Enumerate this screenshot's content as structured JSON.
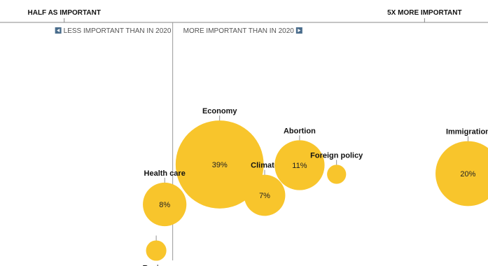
{
  "chart_data": {
    "type": "scatter",
    "x_axis_ticks": [
      {
        "value": 0.5,
        "label": "HALF AS IMPORTANT"
      },
      {
        "value": 5,
        "label": "5X MORE IMPORTANT"
      }
    ],
    "x_reference": 1,
    "x_scale": "log",
    "xlim": [
      0.35,
      7.5
    ],
    "direction_labels": {
      "left": "LESS IMPORTANT THAN IN 2020",
      "right": "MORE IMPORTANT THAN IN 2020"
    },
    "points": [
      {
        "label": "Economy",
        "x": 1.35,
        "share": 39,
        "value_label": "39%"
      },
      {
        "label": "Health care",
        "x": 0.95,
        "share": 8,
        "value_label": "8%"
      },
      {
        "label": "Climate",
        "x": 1.8,
        "share": 7,
        "value_label": "7%"
      },
      {
        "label": "Abortion",
        "x": 2.25,
        "share": 11,
        "value_label": "11%"
      },
      {
        "label": "Foreign policy",
        "x": 2.85,
        "share": 0.9,
        "value_label": ""
      },
      {
        "label": "Immigration",
        "x": 6.6,
        "share": 20,
        "value_label": "20%"
      },
      {
        "label": "Racism",
        "x": 0.9,
        "share": 1.1,
        "value_label": ""
      }
    ],
    "bubble_color": "#F8C52C",
    "grid": false
  }
}
